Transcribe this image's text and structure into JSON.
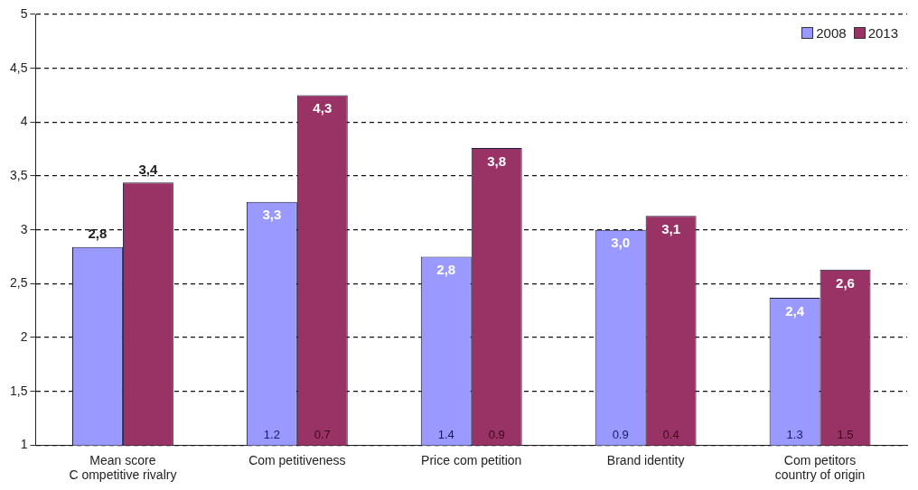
{
  "chart_data": {
    "type": "bar",
    "categories": [
      "Mean score\nC ompetitive rivalry",
      "Com petitiveness",
      "Price com petition",
      "Brand identity",
      "Com petitors\ncountry of origin"
    ],
    "series": [
      {
        "name": "2008",
        "color": "#9999ff",
        "values": [
          2.84,
          3.26,
          2.75,
          3.0,
          2.37
        ],
        "value_labels": [
          "2,8",
          "3,3",
          "2,8",
          "3,0",
          "2,4"
        ]
      },
      {
        "name": "2013",
        "color": "#993366",
        "values": [
          3.44,
          4.25,
          3.76,
          3.13,
          2.63
        ],
        "value_labels": [
          "3,4",
          "4,3",
          "3,8",
          "3,1",
          "2,6"
        ]
      }
    ],
    "ylim": [
      1,
      5
    ],
    "yticks": [
      1,
      {
        "value": 1.5,
        "label": "1,5"
      },
      2,
      {
        "value": 2.5,
        "label": "2,5"
      },
      3,
      {
        "value": 3.5,
        "label": "3,5"
      },
      4,
      {
        "value": 4.5,
        "label": "4,5"
      },
      5
    ],
    "grid": "y",
    "legend": "top right",
    "line_style": "dashed",
    "annotations": [
      {
        "text": "1.2",
        "x": "Com petitiveness",
        "y": 1
      },
      {
        "text": "0.7",
        "x": "Com petitiveness",
        "y": 1
      },
      {
        "text": "1.4",
        "x": "Price com petition",
        "y": 1
      },
      {
        "text": "0.9",
        "x": "Price com petition",
        "y": 1
      },
      {
        "text": "0.9",
        "x": "Brand identity",
        "y": 1
      },
      {
        "text": "0.4",
        "x": "Brand identity",
        "y": 1
      },
      {
        "text": "1.3",
        "x": "Com petitors\ncountry of origin",
        "y": 1
      },
      {
        "text": "1.5",
        "x": "Com petitors\ncountry of origin",
        "y": 1
      }
    ]
  }
}
